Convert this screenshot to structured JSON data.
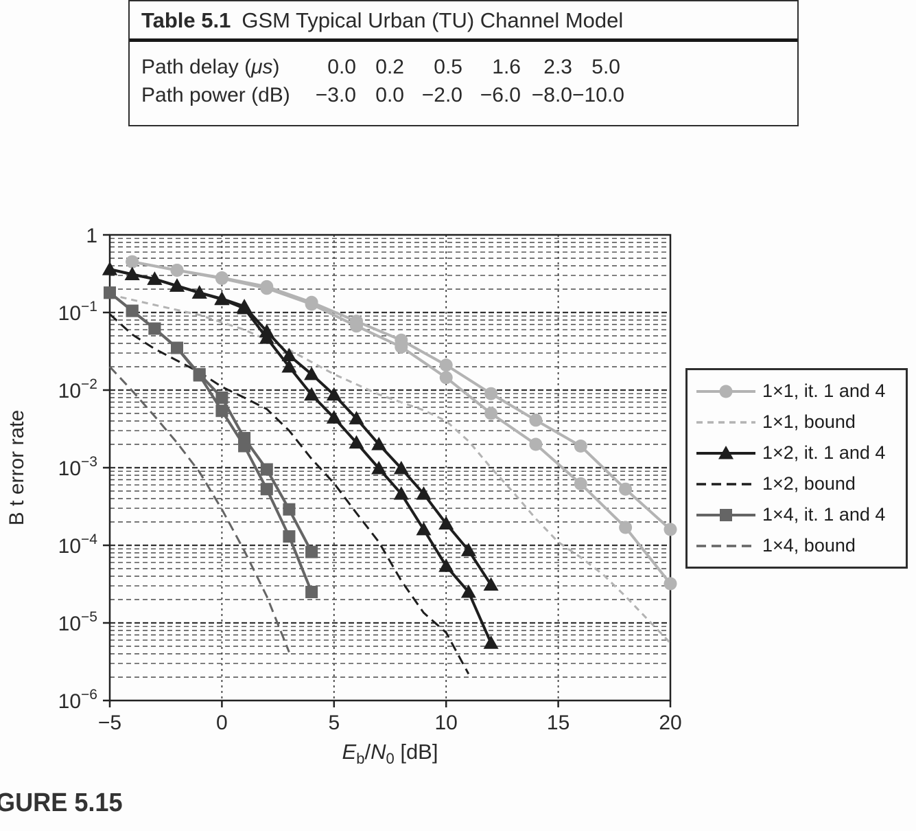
{
  "page": {
    "caption": "GURE 5.15"
  },
  "table": {
    "title_label": "Table 5.1",
    "title_text": "GSM Typical Urban (TU) Channel Model",
    "rows": [
      {
        "label": "Path delay (μs)",
        "values": [
          "0.0",
          "0.2",
          "0.5",
          "1.6",
          "2.3",
          "5.0"
        ]
      },
      {
        "label": "Path power (dB)",
        "values": [
          "−3.0",
          "0.0",
          "−2.0",
          "−6.0",
          "−8.0",
          "−10.0"
        ]
      }
    ]
  },
  "colors": {
    "light_gray": "#b3b3b3",
    "black": "#1e1e1e",
    "dark_gray": "#656565",
    "grid": "#3d3d3d",
    "text": "#2a2a2a"
  },
  "legend": [
    {
      "label": "1×1, it. 1 and 4",
      "color_key": "light_gray",
      "dash": false,
      "marker": "circle"
    },
    {
      "label": "1×1, bound",
      "color_key": "light_gray",
      "dash": true,
      "marker": null
    },
    {
      "label": "1×2, it. 1 and 4",
      "color_key": "black",
      "dash": false,
      "marker": "triangle"
    },
    {
      "label": "1×2, bound",
      "color_key": "black",
      "dash": true,
      "marker": null
    },
    {
      "label": "1×4, it. 1 and 4",
      "color_key": "dark_gray",
      "dash": false,
      "marker": "square"
    },
    {
      "label": "1×4, bound",
      "color_key": "dark_gray",
      "dash": true,
      "marker": null
    }
  ],
  "chart_data": {
    "type": "line",
    "title": "",
    "xlabel": "E_b/N_0 [dB]",
    "ylabel": "B t error rate",
    "yscale": "log",
    "xlim": [
      -5,
      20
    ],
    "ylim": [
      1e-06,
      1
    ],
    "x_ticks": [
      -5,
      0,
      5,
      10,
      15,
      20
    ],
    "y_tick_exponents": [
      0,
      -1,
      -2,
      -3,
      -4,
      -5,
      -6
    ],
    "x_gridlines": [
      0,
      5,
      10,
      15
    ],
    "grid": "log minor dashed horizontal, dashed vertical",
    "legend_position": "outside right",
    "series": [
      {
        "name": "1×1, it. 1",
        "color_key": "light_gray",
        "dash": false,
        "marker": "circle",
        "points": [
          [
            -4,
            0.45
          ],
          [
            -2,
            0.35
          ],
          [
            0,
            0.28
          ],
          [
            2,
            0.215
          ],
          [
            4,
            0.135
          ],
          [
            6,
            0.077
          ],
          [
            8,
            0.044
          ],
          [
            10,
            0.021
          ],
          [
            12,
            0.009
          ],
          [
            14,
            0.0041
          ],
          [
            16,
            0.0019
          ],
          [
            18,
            0.00053
          ],
          [
            20,
            0.00016
          ]
        ]
      },
      {
        "name": "1×1, it. 4",
        "color_key": "light_gray",
        "dash": false,
        "marker": "circle",
        "points": [
          [
            -4,
            0.45
          ],
          [
            -2,
            0.35
          ],
          [
            0,
            0.275
          ],
          [
            2,
            0.205
          ],
          [
            4,
            0.128
          ],
          [
            6,
            0.067
          ],
          [
            8,
            0.036
          ],
          [
            10,
            0.0145
          ],
          [
            12,
            0.005
          ],
          [
            14,
            0.002
          ],
          [
            16,
            0.00062
          ],
          [
            18,
            0.00017
          ],
          [
            20,
            3.2e-05
          ]
        ]
      },
      {
        "name": "1×1, bound",
        "color_key": "light_gray",
        "dash": true,
        "marker": null,
        "points": [
          [
            -5,
            0.17
          ],
          [
            -3,
            0.125
          ],
          [
            -1,
            0.093
          ],
          [
            1,
            0.06
          ],
          [
            3,
            0.033
          ],
          [
            5,
            0.016
          ],
          [
            7,
            0.0088
          ],
          [
            9,
            0.0055
          ],
          [
            10,
            0.004
          ],
          [
            11,
            0.0022
          ],
          [
            12,
            0.001
          ],
          [
            13,
            0.00048
          ],
          [
            14,
            0.00022
          ],
          [
            15,
            0.00011
          ],
          [
            16,
            7e-05
          ],
          [
            17,
            4.2e-05
          ],
          [
            18,
            2.2e-05
          ],
          [
            19,
            1.1e-05
          ],
          [
            20,
            5.5e-06
          ]
        ]
      },
      {
        "name": "1×2, it. 1",
        "color_key": "black",
        "dash": false,
        "marker": "triangle",
        "points": [
          [
            -5,
            0.36
          ],
          [
            -4,
            0.31
          ],
          [
            -3,
            0.27
          ],
          [
            -2,
            0.22
          ],
          [
            -1,
            0.18
          ],
          [
            0,
            0.15
          ],
          [
            1,
            0.12
          ],
          [
            2,
            0.057
          ],
          [
            3,
            0.028
          ],
          [
            4,
            0.016
          ],
          [
            5,
            0.0087
          ],
          [
            6,
            0.0043
          ],
          [
            7,
            0.002
          ],
          [
            8,
            0.00098
          ],
          [
            9,
            0.00046
          ],
          [
            10,
            0.00019
          ],
          [
            11,
            8.6e-05
          ],
          [
            12,
            3.1e-05
          ]
        ]
      },
      {
        "name": "1×2, it. 4",
        "color_key": "black",
        "dash": false,
        "marker": "triangle",
        "points": [
          [
            -5,
            0.36
          ],
          [
            -4,
            0.31
          ],
          [
            -3,
            0.27
          ],
          [
            -2,
            0.22
          ],
          [
            -1,
            0.18
          ],
          [
            0,
            0.148
          ],
          [
            1,
            0.113
          ],
          [
            2,
            0.047
          ],
          [
            3,
            0.02
          ],
          [
            4,
            0.0087
          ],
          [
            5,
            0.0044
          ],
          [
            6,
            0.0021
          ],
          [
            7,
            0.00098
          ],
          [
            8,
            0.00046
          ],
          [
            9,
            0.00016
          ],
          [
            10,
            5.4e-05
          ],
          [
            11,
            2.5e-05
          ],
          [
            12,
            5.5e-06
          ]
        ]
      },
      {
        "name": "1×2, bound",
        "color_key": "black",
        "dash": true,
        "marker": null,
        "points": [
          [
            -5,
            0.095
          ],
          [
            -4,
            0.052
          ],
          [
            -3,
            0.034
          ],
          [
            -2,
            0.024
          ],
          [
            -1,
            0.017
          ],
          [
            0,
            0.011
          ],
          [
            1,
            0.008
          ],
          [
            2,
            0.0057
          ],
          [
            3,
            0.003
          ],
          [
            4,
            0.0013
          ],
          [
            5,
            0.00063
          ],
          [
            6,
            0.00026
          ],
          [
            7,
            0.00011
          ],
          [
            8,
            3.5e-05
          ],
          [
            9,
            1.35e-05
          ],
          [
            10,
            7.5e-06
          ],
          [
            11,
            2.2e-06
          ]
        ]
      },
      {
        "name": "1×4, it. 1",
        "color_key": "dark_gray",
        "dash": false,
        "marker": "square",
        "points": [
          [
            -5,
            0.18
          ],
          [
            -4,
            0.105
          ],
          [
            -3,
            0.062
          ],
          [
            -2,
            0.035
          ],
          [
            -1,
            0.016
          ],
          [
            0,
            0.008
          ],
          [
            1,
            0.0024
          ],
          [
            2,
            0.00095
          ],
          [
            3,
            0.00029
          ],
          [
            4,
            8.2e-05
          ]
        ]
      },
      {
        "name": "1×4, it. 4",
        "color_key": "dark_gray",
        "dash": false,
        "marker": "square",
        "points": [
          [
            -5,
            0.18
          ],
          [
            -4,
            0.105
          ],
          [
            -3,
            0.062
          ],
          [
            -2,
            0.035
          ],
          [
            -1,
            0.0155
          ],
          [
            0,
            0.0054
          ],
          [
            1,
            0.0019
          ],
          [
            2,
            0.00053
          ],
          [
            3,
            0.00013
          ],
          [
            4,
            2.5e-05
          ]
        ]
      },
      {
        "name": "1×4, bound",
        "color_key": "dark_gray",
        "dash": true,
        "marker": null,
        "points": [
          [
            -5,
            0.02
          ],
          [
            -4,
            0.0098
          ],
          [
            -3,
            0.0046
          ],
          [
            -2,
            0.0021
          ],
          [
            -1,
            0.00088
          ],
          [
            0,
            0.00029
          ],
          [
            1,
            8.5e-05
          ],
          [
            2,
            2.2e-05
          ],
          [
            3,
            4.2e-06
          ]
        ]
      }
    ]
  }
}
